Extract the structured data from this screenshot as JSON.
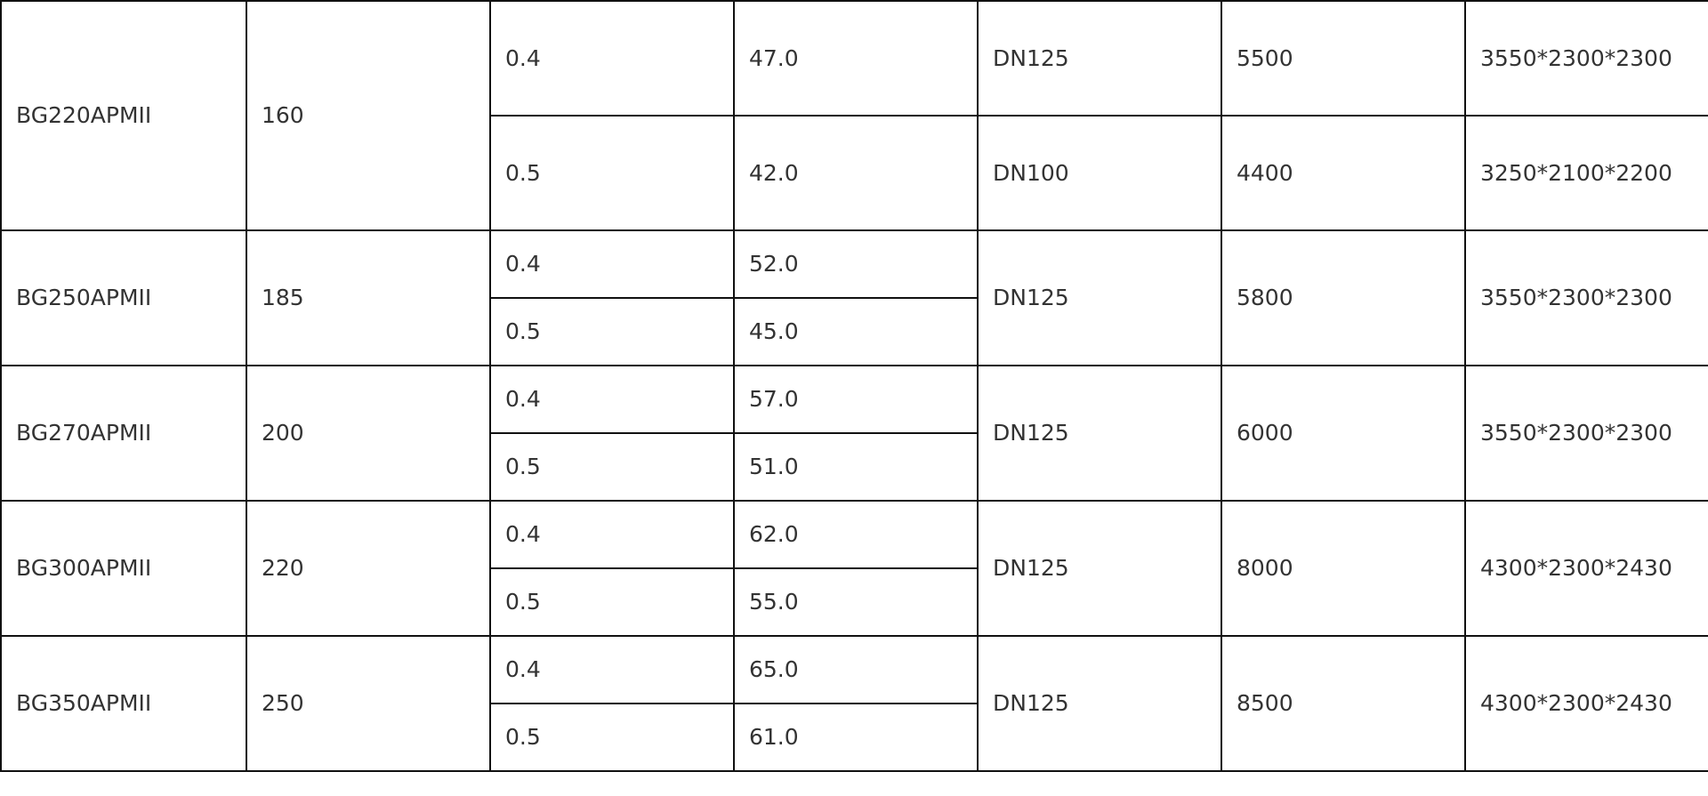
{
  "rows": [
    {
      "model": "BG220APMII",
      "power": "160",
      "sub": [
        {
          "pressure": "0.4",
          "flow": "47.0",
          "outlet": "DN125",
          "weight": "5500",
          "dims": "3550*2300*2300"
        },
        {
          "pressure": "0.5",
          "flow": "42.0",
          "outlet": "DN100",
          "weight": "4400",
          "dims": "3250*2100*2200"
        }
      ]
    },
    {
      "model": "BG250APMII",
      "power": "185",
      "sub": [
        {
          "pressure": "0.4",
          "flow": "52.0"
        },
        {
          "pressure": "0.5",
          "flow": "45.0"
        }
      ],
      "outlet": "DN125",
      "weight": "5800",
      "dims": "3550*2300*2300"
    },
    {
      "model": "BG270APMII",
      "power": "200",
      "sub": [
        {
          "pressure": "0.4",
          "flow": "57.0"
        },
        {
          "pressure": "0.5",
          "flow": "51.0"
        }
      ],
      "outlet": "DN125",
      "weight": "6000",
      "dims": "3550*2300*2300"
    },
    {
      "model": "BG300APMII",
      "power": "220",
      "sub": [
        {
          "pressure": "0.4",
          "flow": "62.0"
        },
        {
          "pressure": "0.5",
          "flow": "55.0"
        }
      ],
      "outlet": "DN125",
      "weight": "8000",
      "dims": "4300*2300*2430"
    },
    {
      "model": "BG350APMII",
      "power": "250",
      "sub": [
        {
          "pressure": "0.4",
          "flow": "65.0"
        },
        {
          "pressure": "0.5",
          "flow": "61.0"
        }
      ],
      "outlet": "DN125",
      "weight": "8500",
      "dims": "4300*2300*2430"
    }
  ]
}
